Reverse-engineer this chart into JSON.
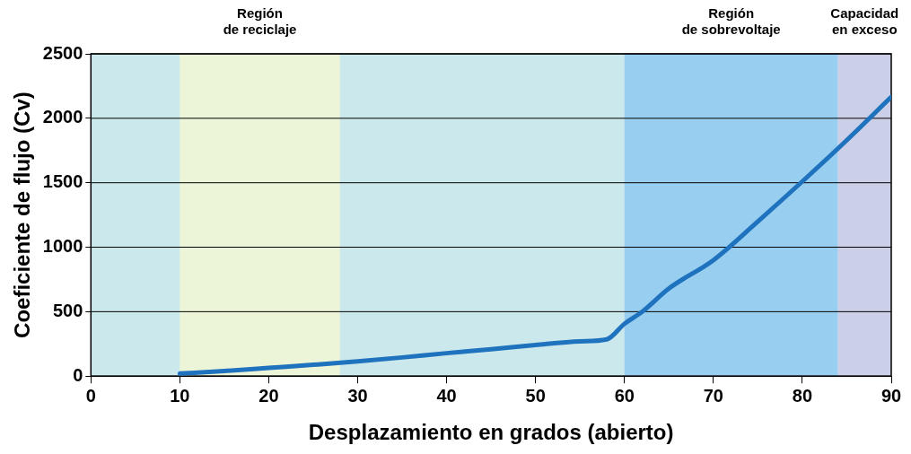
{
  "chart_data": {
    "type": "line",
    "xlabel": "Desplazamiento en grados (abierto)",
    "ylabel": "Coeficiente de flujo (Cv)",
    "x": [
      10,
      15,
      20,
      25,
      30,
      35,
      40,
      45,
      50,
      55,
      58,
      60,
      62,
      65,
      70,
      75,
      80,
      85,
      90
    ],
    "series": [
      {
        "color": "#1f72bd",
        "values": [
          20,
          40,
          64,
          88,
          114,
          145,
          178,
          208,
          242,
          270,
          285,
          406,
          500,
          680,
          900,
          1200,
          1510,
          1830,
          2165
        ]
      }
    ],
    "xlim": [
      0,
      90
    ],
    "xticks": [
      0,
      10,
      20,
      30,
      40,
      50,
      60,
      70,
      80,
      90
    ],
    "ylim": [
      0,
      2500
    ],
    "yticks": [
      0,
      500,
      1000,
      1500,
      2000,
      2500
    ],
    "grid": "y",
    "legend": false,
    "marker": "none",
    "line_style": "solid",
    "bands": [
      {
        "axis": "x",
        "from": 10,
        "to": 28,
        "label": "Región\nde reciclaje",
        "color": "#edf5d8"
      },
      {
        "axis": "x",
        "from": 60,
        "to": 84,
        "label": "Región\nde sobrevoltaje",
        "color": "#98cef0"
      },
      {
        "axis": "x",
        "from": 84,
        "to": 90,
        "label": "Capacidad\nen exceso",
        "color": "#cccfe8"
      }
    ]
  }
}
